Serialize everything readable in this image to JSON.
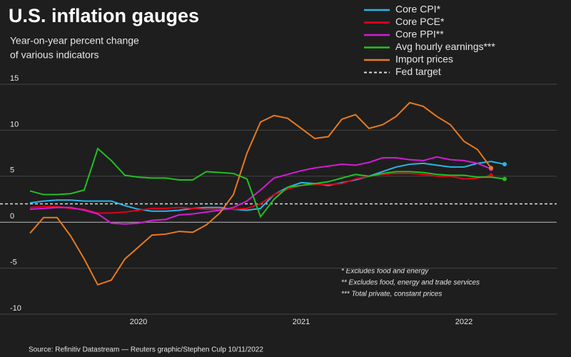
{
  "chart_data": {
    "type": "line",
    "title": "U.S. inflation gauges",
    "subtitle": [
      "Year-on-year percent change",
      "of various indicators"
    ],
    "categories": [
      null,
      null,
      null,
      null,
      null,
      null,
      null,
      null,
      "2020",
      null,
      null,
      null,
      null,
      null,
      null,
      null,
      null,
      null,
      null,
      null,
      "2021",
      null,
      null,
      null,
      null,
      null,
      null,
      null,
      null,
      null,
      null,
      null,
      "2022",
      null,
      null,
      null
    ],
    "series": [
      {
        "name": "Core CPI*",
        "color": "#29b6e8",
        "values": [
          2.1,
          2.3,
          2.4,
          2.4,
          2.3,
          2.3,
          2.3,
          1.8,
          1.4,
          1.2,
          1.2,
          1.3,
          1.5,
          1.6,
          1.6,
          1.4,
          1.3,
          1.5,
          3.0,
          3.8,
          4.3,
          4.2,
          4.0,
          4.3,
          4.6,
          5.0,
          5.5,
          6.0,
          6.3,
          6.4,
          6.2,
          6.0,
          6.0,
          6.4,
          6.6,
          6.3
        ]
      },
      {
        "name": "Core PCE*",
        "color": "#e0001b",
        "values": [
          1.6,
          1.7,
          1.7,
          1.5,
          1.4,
          1.0,
          1.0,
          1.1,
          1.3,
          1.5,
          1.5,
          1.6,
          1.5,
          1.4,
          1.4,
          1.4,
          1.5,
          2.0,
          3.0,
          3.6,
          4.0,
          4.1,
          4.1,
          4.2,
          4.7,
          5.0,
          5.2,
          5.3,
          5.3,
          5.2,
          5.0,
          5.0,
          4.7,
          4.8,
          5.1,
          null
        ]
      },
      {
        "name": "Core PPI**",
        "color": "#d41cd4",
        "values": [
          1.4,
          1.5,
          1.6,
          1.6,
          1.3,
          0.9,
          -0.1,
          -0.2,
          -0.1,
          0.2,
          0.3,
          0.8,
          0.9,
          1.1,
          1.3,
          1.6,
          2.3,
          3.5,
          4.8,
          5.2,
          5.6,
          5.9,
          6.1,
          6.3,
          6.2,
          6.5,
          7.0,
          7.0,
          6.8,
          6.7,
          7.1,
          6.8,
          6.7,
          6.4,
          5.8,
          null
        ]
      },
      {
        "name": "Avg hourly earnings***",
        "color": "#22c022",
        "values": [
          3.4,
          3.0,
          3.0,
          3.1,
          3.5,
          8.0,
          6.7,
          5.1,
          4.9,
          4.8,
          4.8,
          4.6,
          4.6,
          5.5,
          5.4,
          5.3,
          4.7,
          0.6,
          2.5,
          3.8,
          4.0,
          4.2,
          4.4,
          4.8,
          5.2,
          5.0,
          5.3,
          5.5,
          5.5,
          5.4,
          5.2,
          5.1,
          5.1,
          4.9,
          4.9,
          4.7
        ]
      },
      {
        "name": "Import prices",
        "color": "#e87a1e",
        "values": [
          -1.2,
          0.5,
          0.5,
          -1.5,
          -4.0,
          -6.8,
          -6.3,
          -4.0,
          -2.7,
          -1.4,
          -1.3,
          -1.0,
          -1.1,
          -0.3,
          1.0,
          3.0,
          7.5,
          10.9,
          11.6,
          11.3,
          10.2,
          9.1,
          9.3,
          11.2,
          11.7,
          10.2,
          10.6,
          11.5,
          13.0,
          12.6,
          11.5,
          10.6,
          8.8,
          7.9,
          5.9,
          null
        ]
      }
    ],
    "reference_line": {
      "name": "Fed target",
      "value": 2,
      "color": "#dddddd"
    },
    "ylim": [
      -10,
      15
    ],
    "yticks": [
      -10,
      -5,
      0,
      5,
      10,
      15
    ],
    "grid": true,
    "legend": "top-right",
    "notes": [
      "* Excludes food and energy",
      "** Excludes food, energy and trade services",
      "*** Total private, constant prices"
    ],
    "source": "Source: Refinitiv Datastream — Reuters graphic/Stephen Culp 10/11/2022"
  }
}
